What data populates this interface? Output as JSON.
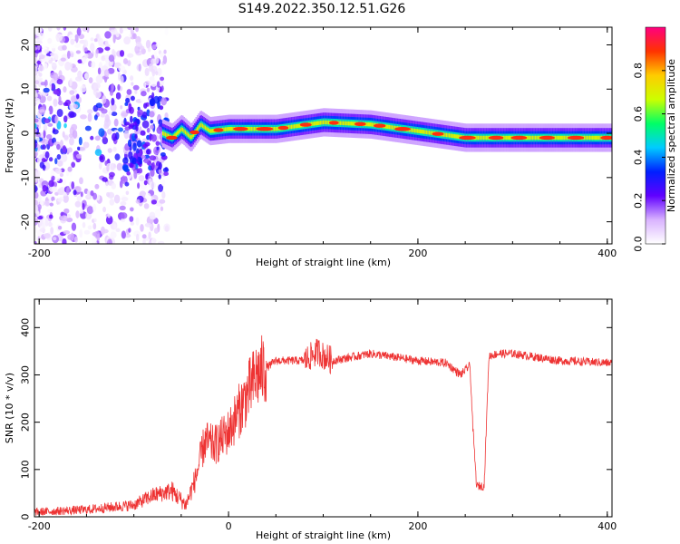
{
  "title": "S149.2022.350.12.51.G26",
  "chart_data": [
    {
      "type": "heatmap",
      "xlabel": "Height of straight line (km)",
      "ylabel": "Frequency (Hz)",
      "xlim": [
        -205,
        405
      ],
      "ylim": [
        -25,
        24
      ],
      "xticks": [
        -200,
        0,
        200,
        400
      ],
      "yticks": [
        -20,
        -10,
        0,
        10,
        20
      ],
      "colorbar": {
        "label": "Normalized spectral amplitude",
        "range": [
          0,
          1
        ],
        "ticks": [
          0.0,
          0.2,
          0.4,
          0.6,
          0.8
        ],
        "tick_labels": [
          "0.0",
          "0.2",
          "0.4",
          "0.6",
          "0.8"
        ],
        "colors": [
          "#ffffff",
          "#d9b3ff",
          "#6000ff",
          "#0020ff",
          "#00ccff",
          "#00ff66",
          "#ccff00",
          "#ffcc00",
          "#ff3300",
          "#ff0080"
        ]
      },
      "ridge": {
        "x": [
          -70,
          -60,
          -50,
          -40,
          -30,
          -20,
          0,
          50,
          100,
          150,
          200,
          250,
          300,
          350,
          400
        ],
        "y": [
          0,
          -1,
          1,
          -1,
          2,
          0.5,
          1,
          1,
          2.5,
          2,
          0.5,
          -1,
          -1,
          -1,
          -1
        ]
      }
    },
    {
      "type": "line",
      "xlabel": "Height of straight line (km)",
      "ylabel": "SNR (10 * v/v)",
      "xlim": [
        -205,
        405
      ],
      "ylim": [
        0,
        460
      ],
      "xticks": [
        -200,
        0,
        200,
        400
      ],
      "yticks": [
        0,
        100,
        200,
        300,
        400
      ],
      "color": "#ee3333",
      "series": [
        {
          "x": [
            -205,
            -150,
            -100,
            -80,
            -60,
            -45,
            -35,
            -25,
            -15,
            0,
            15,
            30,
            50,
            80,
            95,
            100,
            110,
            150,
            200,
            230,
            245,
            255,
            258,
            262,
            265,
            270,
            275,
            285,
            300,
            350,
            405
          ],
          "y": [
            10,
            15,
            25,
            45,
            55,
            25,
            80,
            160,
            150,
            180,
            240,
            300,
            330,
            330,
            350,
            340,
            330,
            345,
            330,
            325,
            300,
            320,
            190,
            65,
            65,
            65,
            340,
            345,
            345,
            330,
            325
          ]
        }
      ]
    }
  ]
}
